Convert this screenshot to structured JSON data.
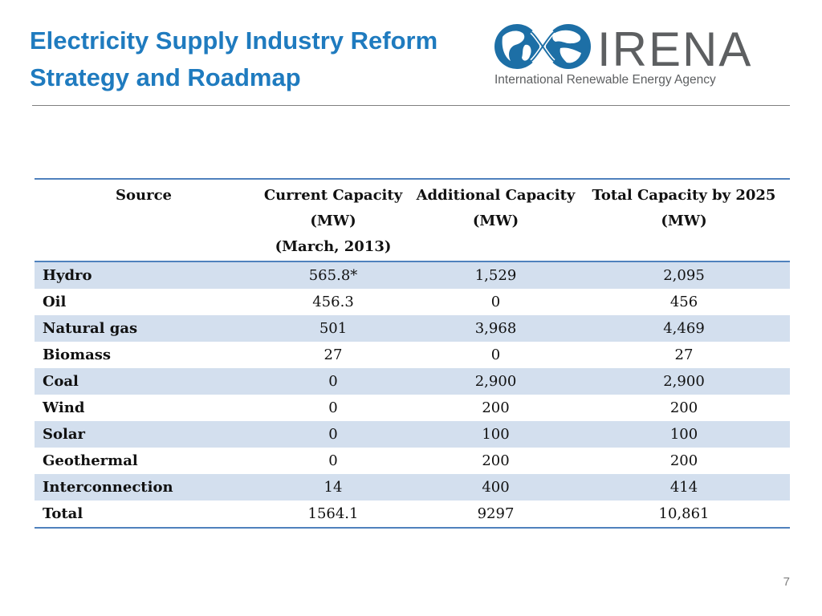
{
  "title": {
    "line1": "Electricity Supply Industry Reform",
    "line2": "Strategy and Roadmap"
  },
  "logo": {
    "icon": "globe-infinity-icon",
    "wordmark": "IRENA",
    "subtitle": "International Renewable Energy Agency",
    "colors": {
      "globe": "#1d6fa6",
      "text": "#5d5f61"
    }
  },
  "table": {
    "headers": [
      [
        "Source"
      ],
      [
        "Current Capacity",
        "(MW)",
        "(March, 2013)"
      ],
      [
        "Additional Capacity",
        "(MW)"
      ],
      [
        "Total Capacity by 2025",
        "(MW)"
      ]
    ],
    "rows": [
      [
        "Hydro",
        "565.8*",
        "1,529",
        "2,095"
      ],
      [
        "Oil",
        "456.3",
        "0",
        "456"
      ],
      [
        "Natural gas",
        "501",
        "3,968",
        "4,469"
      ],
      [
        "Biomass",
        "27",
        "0",
        "27"
      ],
      [
        "Coal",
        "0",
        "2,900",
        "2,900"
      ],
      [
        "Wind",
        "0",
        "200",
        "200"
      ],
      [
        "Solar",
        "0",
        "100",
        "100"
      ],
      [
        "Geothermal",
        "0",
        "200",
        "200"
      ],
      [
        "Interconnection",
        "14",
        "400",
        "414"
      ],
      [
        "Total",
        "1564.1",
        "9297",
        "10,861"
      ]
    ],
    "colors": {
      "rule": "#4f81bd",
      "band": "#d3dfee"
    }
  },
  "page_number": "7"
}
